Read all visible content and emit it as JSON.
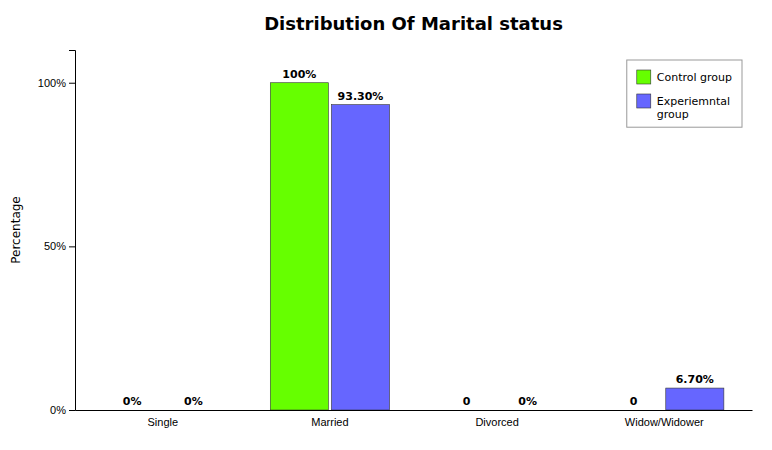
{
  "chart_data": {
    "type": "bar",
    "title": "Distribution Of Marital status",
    "categories": [
      "Single",
      "Married",
      "Divorced",
      "Widow/Widower"
    ],
    "series": [
      {
        "name": "Control group",
        "color": "#66ff00",
        "values": [
          0,
          100,
          0,
          0
        ],
        "value_labels": [
          "0%",
          "100%",
          "0",
          "0"
        ]
      },
      {
        "name": "Experiemntal\ngroup",
        "color": "#6666ff",
        "values": [
          0,
          93.3,
          0,
          6.7
        ],
        "value_labels": [
          "0%",
          "93.30%",
          "0%",
          "6.70%"
        ]
      }
    ],
    "y_label": "Percentage",
    "ylim": [
      0,
      110
    ],
    "yticks": [
      {
        "value": 0,
        "label": "0%"
      },
      {
        "value": 50,
        "label": "50%"
      },
      {
        "value": 100,
        "label": "100%"
      }
    ],
    "legend": "upper right",
    "data_labels": true
  }
}
